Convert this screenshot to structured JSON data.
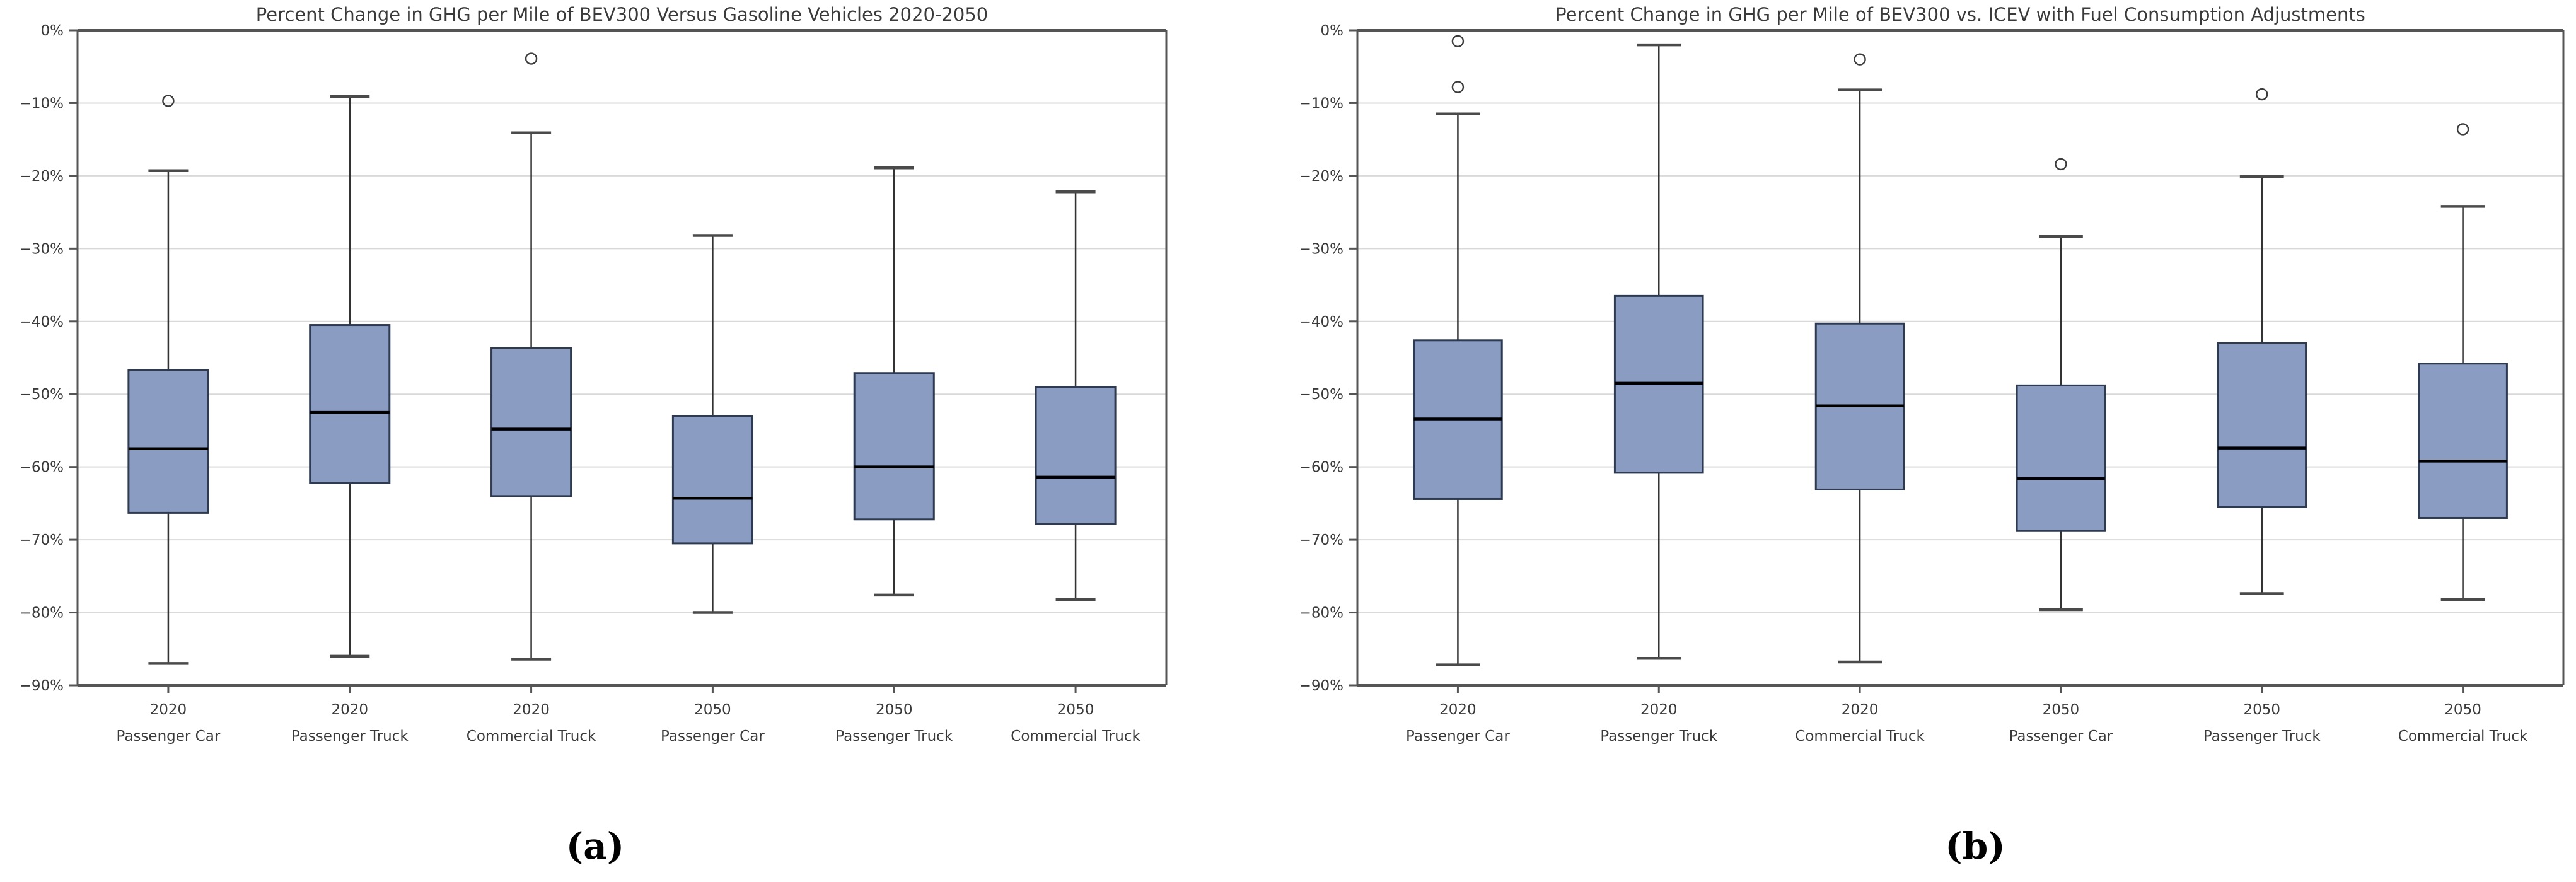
{
  "colors": {
    "background": "#FFFFFF",
    "box_fill": "#8A9CC2",
    "box_edge": "#2E3A50",
    "median": "#000000",
    "whisker": "#333333",
    "cap": "#4A4A4A",
    "grid": "#D9D9D9",
    "spine": "#555555",
    "text": "#3A3A3A"
  },
  "chart_data": [
    {
      "type": "boxplot",
      "panel_label": "(a)",
      "title": "Percent Change in GHG per Mile of BEV300 Versus Gasoline Vehicles 2020-2050",
      "ylim": [
        -90,
        0
      ],
      "ytick_step": 10,
      "grid": "horizontal",
      "ytick_labels": [
        "0%",
        "−10%",
        "−20%",
        "−30%",
        "−40%",
        "−50%",
        "−60%",
        "−70%",
        "−80%",
        "−90%"
      ],
      "categories": [
        [
          "2020",
          "Passenger Car"
        ],
        [
          "2020",
          "Passenger Truck"
        ],
        [
          "2020",
          "Commercial Truck"
        ],
        [
          "2050",
          "Passenger Car"
        ],
        [
          "2050",
          "Passenger Truck"
        ],
        [
          "2050",
          "Commercial Truck"
        ]
      ],
      "boxes": [
        {
          "whislo": -87.0,
          "q1": -66.3,
          "med": -57.5,
          "q3": -46.7,
          "whishi": -19.3,
          "fliers": [
            -9.7
          ]
        },
        {
          "whislo": -86.0,
          "q1": -62.2,
          "med": -52.5,
          "q3": -40.5,
          "whishi": -9.1,
          "fliers": []
        },
        {
          "whislo": -86.4,
          "q1": -64.0,
          "med": -54.8,
          "q3": -43.7,
          "whishi": -14.1,
          "fliers": [
            -3.9
          ]
        },
        {
          "whislo": -80.0,
          "q1": -70.5,
          "med": -64.3,
          "q3": -53.0,
          "whishi": -28.2,
          "fliers": []
        },
        {
          "whislo": -77.6,
          "q1": -67.2,
          "med": -60.0,
          "q3": -47.1,
          "whishi": -18.9,
          "fliers": []
        },
        {
          "whislo": -78.2,
          "q1": -67.8,
          "med": -61.4,
          "q3": -49.0,
          "whishi": -22.2,
          "fliers": []
        }
      ]
    },
    {
      "type": "boxplot",
      "panel_label": "(b)",
      "title": "Percent Change in GHG per Mile of BEV300 vs. ICEV with Fuel Consumption Adjustments",
      "ylim": [
        -90,
        0
      ],
      "ytick_step": 10,
      "grid": "horizontal",
      "ytick_labels": [
        "0%",
        "−10%",
        "−20%",
        "−30%",
        "−40%",
        "−50%",
        "−60%",
        "−70%",
        "−80%",
        "−90%"
      ],
      "categories": [
        [
          "2020",
          "Passenger Car"
        ],
        [
          "2020",
          "Passenger Truck"
        ],
        [
          "2020",
          "Commercial Truck"
        ],
        [
          "2050",
          "Passenger Car"
        ],
        [
          "2050",
          "Passenger Truck"
        ],
        [
          "2050",
          "Commercial Truck"
        ]
      ],
      "boxes": [
        {
          "whislo": -87.2,
          "q1": -64.4,
          "med": -53.4,
          "q3": -42.6,
          "whishi": -11.5,
          "fliers": [
            -7.8,
            -1.5
          ]
        },
        {
          "whislo": -86.3,
          "q1": -60.8,
          "med": -48.5,
          "q3": -36.5,
          "whishi": -2.0,
          "fliers": []
        },
        {
          "whislo": -86.8,
          "q1": -63.1,
          "med": -51.6,
          "q3": -40.3,
          "whishi": -8.2,
          "fliers": [
            -4.0
          ]
        },
        {
          "whislo": -79.6,
          "q1": -68.8,
          "med": -61.6,
          "q3": -48.8,
          "whishi": -28.3,
          "fliers": [
            -18.4
          ]
        },
        {
          "whislo": -77.4,
          "q1": -65.5,
          "med": -57.4,
          "q3": -43.0,
          "whishi": -20.1,
          "fliers": [
            -8.8
          ]
        },
        {
          "whislo": -78.2,
          "q1": -67.0,
          "med": -59.2,
          "q3": -45.8,
          "whishi": -24.2,
          "fliers": [
            -13.6
          ]
        }
      ]
    }
  ]
}
